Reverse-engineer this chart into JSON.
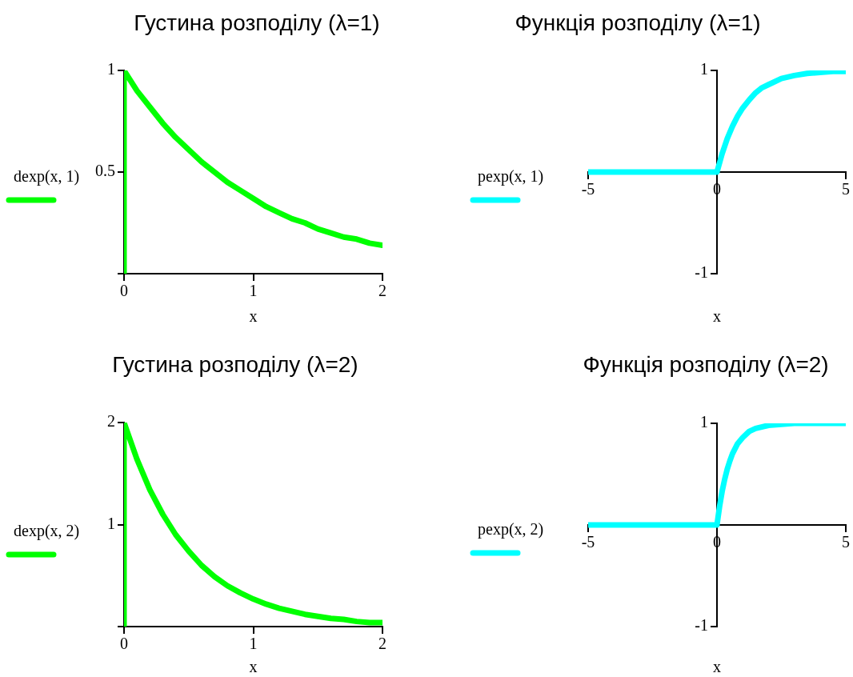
{
  "chart_data": [
    {
      "type": "line",
      "title": "Густина розподілу (λ=1)",
      "xlabel": "x",
      "x": [
        0,
        0,
        0.1,
        0.2,
        0.3,
        0.4,
        0.5,
        0.6,
        0.7,
        0.8,
        0.9,
        1,
        1.1,
        1.2,
        1.3,
        1.4,
        1.5,
        1.6,
        1.7,
        1.8,
        1.9,
        2
      ],
      "series": [
        {
          "name": "dexp(x, 1)",
          "color": "#00ff00",
          "values": [
            0,
            1,
            0.9,
            0.82,
            0.74,
            0.67,
            0.61,
            0.55,
            0.5,
            0.45,
            0.41,
            0.37,
            0.33,
            0.3,
            0.27,
            0.25,
            0.22,
            0.2,
            0.18,
            0.17,
            0.15,
            0.14
          ]
        }
      ],
      "xlim": [
        0,
        2
      ],
      "xticks": [
        0,
        1,
        2
      ],
      "ylim": [
        0,
        1
      ],
      "yticks": [
        {
          "value": 0,
          "label": null
        },
        0.5,
        1
      ],
      "grid": false,
      "legend": "left",
      "marker": "none",
      "line_style": "solid"
    },
    {
      "type": "line",
      "title": "Функція розподілу (λ=1)",
      "xlabel": "x",
      "x": [
        -5,
        0,
        0.2,
        0.4,
        0.6,
        0.8,
        1,
        1.25,
        1.5,
        1.75,
        2,
        2.5,
        3,
        3.5,
        4,
        4.5,
        5
      ],
      "series": [
        {
          "name": "pexp(x, 1)",
          "color": "#00ffff",
          "values": [
            0,
            0,
            0.18,
            0.33,
            0.45,
            0.55,
            0.63,
            0.71,
            0.78,
            0.83,
            0.86,
            0.92,
            0.95,
            0.97,
            0.98,
            0.99,
            0.99
          ]
        }
      ],
      "xlim": [
        -5,
        5
      ],
      "xticks": [
        -5,
        0,
        5
      ],
      "ylim": [
        -1,
        1
      ],
      "yticks": [
        -1,
        1
      ],
      "grid": false,
      "legend": "left",
      "marker": "none",
      "line_style": "solid"
    },
    {
      "type": "line",
      "title": "Густина розподілу (λ=2)",
      "xlabel": "x",
      "x": [
        0,
        0,
        0.1,
        0.2,
        0.3,
        0.4,
        0.5,
        0.6,
        0.7,
        0.8,
        0.9,
        1,
        1.1,
        1.2,
        1.3,
        1.4,
        1.5,
        1.6,
        1.7,
        1.8,
        1.9,
        2
      ],
      "series": [
        {
          "name": "dexp(x, 2)",
          "color": "#00ff00",
          "values": [
            0,
            2,
            1.64,
            1.34,
            1.1,
            0.9,
            0.74,
            0.6,
            0.49,
            0.4,
            0.33,
            0.27,
            0.22,
            0.18,
            0.15,
            0.12,
            0.1,
            0.08,
            0.07,
            0.05,
            0.04,
            0.04
          ]
        }
      ],
      "xlim": [
        0,
        2
      ],
      "xticks": [
        0,
        1,
        2
      ],
      "ylim": [
        0,
        2
      ],
      "yticks": [
        {
          "value": 0,
          "label": null
        },
        1,
        2
      ],
      "grid": false,
      "legend": "left",
      "marker": "none",
      "line_style": "solid"
    },
    {
      "type": "line",
      "title": "Функція розподілу (λ=2)",
      "xlabel": "x",
      "x": [
        -5,
        0,
        0.1,
        0.2,
        0.3,
        0.4,
        0.5,
        0.6,
        0.8,
        1,
        1.25,
        1.5,
        2,
        2.5,
        3,
        4,
        5
      ],
      "series": [
        {
          "name": "pexp(x, 2)",
          "color": "#00ffff",
          "values": [
            0,
            0,
            0.18,
            0.33,
            0.45,
            0.55,
            0.63,
            0.7,
            0.8,
            0.86,
            0.92,
            0.95,
            0.98,
            0.99,
            1,
            1,
            1
          ]
        }
      ],
      "xlim": [
        -5,
        5
      ],
      "xticks": [
        -5,
        0,
        5
      ],
      "ylim": [
        -1,
        1
      ],
      "yticks": [
        -1,
        1
      ],
      "grid": false,
      "legend": "left",
      "marker": "none",
      "line_style": "solid"
    }
  ]
}
